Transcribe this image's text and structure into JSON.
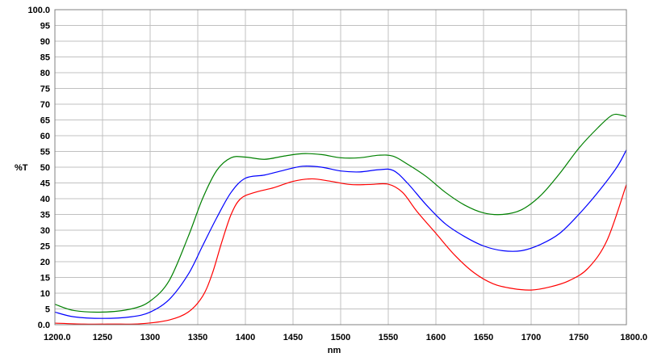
{
  "chart_data": {
    "type": "line",
    "title": "",
    "xlabel": "nm",
    "ylabel": "%T",
    "xlim": [
      1200,
      1800
    ],
    "ylim": [
      0,
      100
    ],
    "grid": true,
    "xticks": [
      1200,
      1250,
      1300,
      1350,
      1400,
      1450,
      1500,
      1550,
      1600,
      1650,
      1700,
      1750,
      1800
    ],
    "xtick_labels": [
      "1200.0",
      "1250",
      "1300",
      "1350",
      "1400",
      "1450",
      "1500",
      "1550",
      "1600",
      "1650",
      "1700",
      "1750",
      "1800.0"
    ],
    "yticks": [
      0,
      5,
      10,
      15,
      20,
      25,
      30,
      35,
      40,
      45,
      50,
      55,
      60,
      65,
      70,
      75,
      80,
      85,
      90,
      95,
      100
    ],
    "ytick_labels": [
      "0.0",
      "5",
      "10",
      "15",
      "20",
      "25",
      "30",
      "35",
      "40",
      "45",
      "50",
      "55",
      "60",
      "65",
      "70",
      "75",
      "80",
      "85",
      "90",
      "95",
      "100.0"
    ],
    "series": [
      {
        "color": "#008000",
        "points": [
          [
            1200,
            6.5
          ],
          [
            1220,
            4.5
          ],
          [
            1250,
            4.0
          ],
          [
            1280,
            5.0
          ],
          [
            1300,
            7.5
          ],
          [
            1320,
            14
          ],
          [
            1340,
            28
          ],
          [
            1355,
            40
          ],
          [
            1370,
            49
          ],
          [
            1385,
            53
          ],
          [
            1400,
            53.2
          ],
          [
            1420,
            52.5
          ],
          [
            1440,
            53.5
          ],
          [
            1460,
            54.3
          ],
          [
            1480,
            54
          ],
          [
            1500,
            53
          ],
          [
            1520,
            53
          ],
          [
            1540,
            53.8
          ],
          [
            1555,
            53.5
          ],
          [
            1570,
            51
          ],
          [
            1590,
            47
          ],
          [
            1610,
            42
          ],
          [
            1630,
            38
          ],
          [
            1650,
            35.5
          ],
          [
            1670,
            35
          ],
          [
            1690,
            36.5
          ],
          [
            1710,
            41
          ],
          [
            1730,
            48
          ],
          [
            1750,
            56
          ],
          [
            1770,
            62.5
          ],
          [
            1785,
            66.5
          ],
          [
            1795,
            66.5
          ],
          [
            1800,
            66
          ]
        ]
      },
      {
        "color": "#0000ff",
        "points": [
          [
            1200,
            4
          ],
          [
            1220,
            2.5
          ],
          [
            1250,
            2
          ],
          [
            1280,
            2.5
          ],
          [
            1300,
            4
          ],
          [
            1320,
            8
          ],
          [
            1340,
            16
          ],
          [
            1355,
            25
          ],
          [
            1370,
            34
          ],
          [
            1385,
            42
          ],
          [
            1400,
            46.5
          ],
          [
            1420,
            47.5
          ],
          [
            1440,
            49
          ],
          [
            1460,
            50.3
          ],
          [
            1480,
            50
          ],
          [
            1500,
            48.8
          ],
          [
            1520,
            48.5
          ],
          [
            1540,
            49.2
          ],
          [
            1555,
            49
          ],
          [
            1570,
            45
          ],
          [
            1590,
            38
          ],
          [
            1610,
            32
          ],
          [
            1630,
            28
          ],
          [
            1650,
            25
          ],
          [
            1670,
            23.5
          ],
          [
            1690,
            23.5
          ],
          [
            1710,
            25.5
          ],
          [
            1730,
            29
          ],
          [
            1750,
            35
          ],
          [
            1770,
            42
          ],
          [
            1790,
            50
          ],
          [
            1800,
            55.5
          ]
        ]
      },
      {
        "color": "#ff0000",
        "points": [
          [
            1200,
            0.5
          ],
          [
            1230,
            0.2
          ],
          [
            1260,
            0.2
          ],
          [
            1290,
            0.3
          ],
          [
            1320,
            1.5
          ],
          [
            1340,
            4
          ],
          [
            1355,
            9
          ],
          [
            1365,
            16
          ],
          [
            1375,
            26
          ],
          [
            1385,
            35
          ],
          [
            1395,
            40
          ],
          [
            1410,
            42
          ],
          [
            1430,
            43.5
          ],
          [
            1450,
            45.5
          ],
          [
            1470,
            46.3
          ],
          [
            1490,
            45.5
          ],
          [
            1510,
            44.5
          ],
          [
            1530,
            44.5
          ],
          [
            1550,
            44.6
          ],
          [
            1565,
            42
          ],
          [
            1580,
            36
          ],
          [
            1600,
            29
          ],
          [
            1620,
            22
          ],
          [
            1640,
            16.5
          ],
          [
            1660,
            13
          ],
          [
            1680,
            11.5
          ],
          [
            1700,
            11
          ],
          [
            1720,
            12
          ],
          [
            1740,
            14
          ],
          [
            1760,
            18
          ],
          [
            1780,
            27
          ],
          [
            1800,
            44.5
          ]
        ]
      }
    ]
  }
}
